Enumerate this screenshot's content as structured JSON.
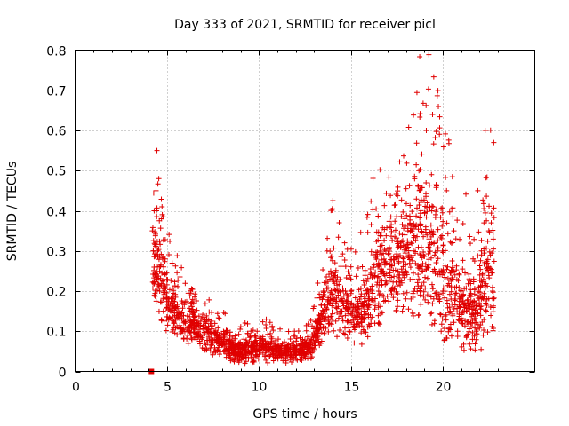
{
  "chart_data": {
    "type": "scatter",
    "title": "Day 333 of 2021, SRMTID for receiver picl",
    "xlabel": "GPS time / hours",
    "ylabel": "SRMTID / TECUs",
    "xlim": [
      0,
      25
    ],
    "ylim": [
      0,
      0.8
    ],
    "xticks": [
      0,
      5,
      10,
      15,
      20
    ],
    "xtick_labels": [
      "0",
      "5",
      "10",
      "15",
      "20"
    ],
    "yticks": [
      0,
      0.1,
      0.2,
      0.3,
      0.4,
      0.5,
      0.6,
      0.7,
      0.8
    ],
    "ytick_labels": [
      "0",
      "0.1",
      "0.2",
      "0.3",
      "0.4",
      "0.5",
      "0.6",
      "0.7",
      "0.8"
    ],
    "grid": true,
    "marker": "plus",
    "marker_color": "#e00000",
    "outlier_marker": "square",
    "outlier_point": {
      "x": 4.15,
      "y": 0.0
    },
    "series": [
      {
        "name": "SRMTID",
        "x": [
          4.2,
          4.25,
          4.3,
          4.35,
          4.4,
          4.45,
          4.5,
          4.55,
          4.6,
          4.7,
          4.8,
          4.9,
          5.0,
          5.2,
          5.4,
          5.6,
          5.8,
          6.0,
          6.3,
          6.6,
          6.9,
          7.2,
          7.5,
          7.8,
          8.1,
          8.4,
          8.7,
          9.0,
          9.3,
          9.6,
          9.9,
          10.2,
          10.5,
          10.8,
          11.1,
          11.4,
          11.7,
          12.0,
          12.3,
          12.6,
          12.9,
          13.2,
          13.5,
          13.7,
          13.9,
          14.1,
          14.4,
          14.7,
          14.9,
          15.1,
          15.4,
          15.7,
          16.0,
          16.3,
          16.6,
          16.9,
          17.2,
          17.5,
          17.8,
          18.1,
          18.4,
          18.7,
          18.9,
          19.1,
          19.4,
          19.7,
          20.0,
          20.2,
          20.4,
          20.6,
          20.8,
          21.0,
          21.3,
          21.6,
          21.9,
          22.1,
          22.3,
          22.5,
          22.7
        ],
        "y": [
          0.35,
          0.3,
          0.4,
          0.24,
          0.45,
          0.55,
          0.3,
          0.48,
          0.2,
          0.38,
          0.15,
          0.28,
          0.18,
          0.15,
          0.12,
          0.14,
          0.1,
          0.12,
          0.09,
          0.11,
          0.08,
          0.1,
          0.07,
          0.06,
          0.08,
          0.05,
          0.06,
          0.05,
          0.04,
          0.06,
          0.05,
          0.07,
          0.06,
          0.05,
          0.04,
          0.05,
          0.04,
          0.05,
          0.04,
          0.06,
          0.09,
          0.12,
          0.2,
          0.3,
          0.25,
          0.18,
          0.15,
          0.2,
          0.1,
          0.15,
          0.12,
          0.1,
          0.18,
          0.12,
          0.25,
          0.3,
          0.2,
          0.28,
          0.15,
          0.35,
          0.3,
          0.5,
          0.25,
          0.6,
          0.4,
          0.3,
          0.2,
          0.45,
          0.15,
          0.35,
          0.1,
          0.2,
          0.15,
          0.12,
          0.45,
          0.3,
          0.6,
          0.35,
          0.2
        ],
        "trend_envelope": {
          "x": [
            4.2,
            4.6,
            5.0,
            6.0,
            7.0,
            8.0,
            9.0,
            10.0,
            11.0,
            12.0,
            12.8,
            13.4,
            14.0,
            14.6,
            15.2,
            15.8,
            16.4,
            17.0,
            17.6,
            18.2,
            18.8,
            19.4,
            20.0,
            20.6,
            21.2,
            21.8,
            22.4,
            22.8
          ],
          "y_min": [
            0.15,
            0.12,
            0.1,
            0.07,
            0.05,
            0.03,
            0.02,
            0.02,
            0.02,
            0.02,
            0.03,
            0.06,
            0.1,
            0.09,
            0.06,
            0.07,
            0.1,
            0.14,
            0.15,
            0.14,
            0.12,
            0.1,
            0.07,
            0.06,
            0.06,
            0.07,
            0.08,
            0.1
          ],
          "y_max": [
            0.4,
            0.38,
            0.3,
            0.22,
            0.16,
            0.12,
            0.09,
            0.11,
            0.09,
            0.08,
            0.1,
            0.22,
            0.35,
            0.3,
            0.25,
            0.3,
            0.42,
            0.45,
            0.42,
            0.5,
            0.65,
            0.6,
            0.55,
            0.45,
            0.35,
            0.3,
            0.5,
            0.45
          ],
          "y_center": [
            0.28,
            0.25,
            0.18,
            0.13,
            0.1,
            0.07,
            0.05,
            0.06,
            0.05,
            0.05,
            0.06,
            0.13,
            0.2,
            0.17,
            0.14,
            0.16,
            0.24,
            0.28,
            0.27,
            0.3,
            0.33,
            0.3,
            0.25,
            0.2,
            0.16,
            0.15,
            0.22,
            0.22
          ]
        }
      }
    ]
  }
}
